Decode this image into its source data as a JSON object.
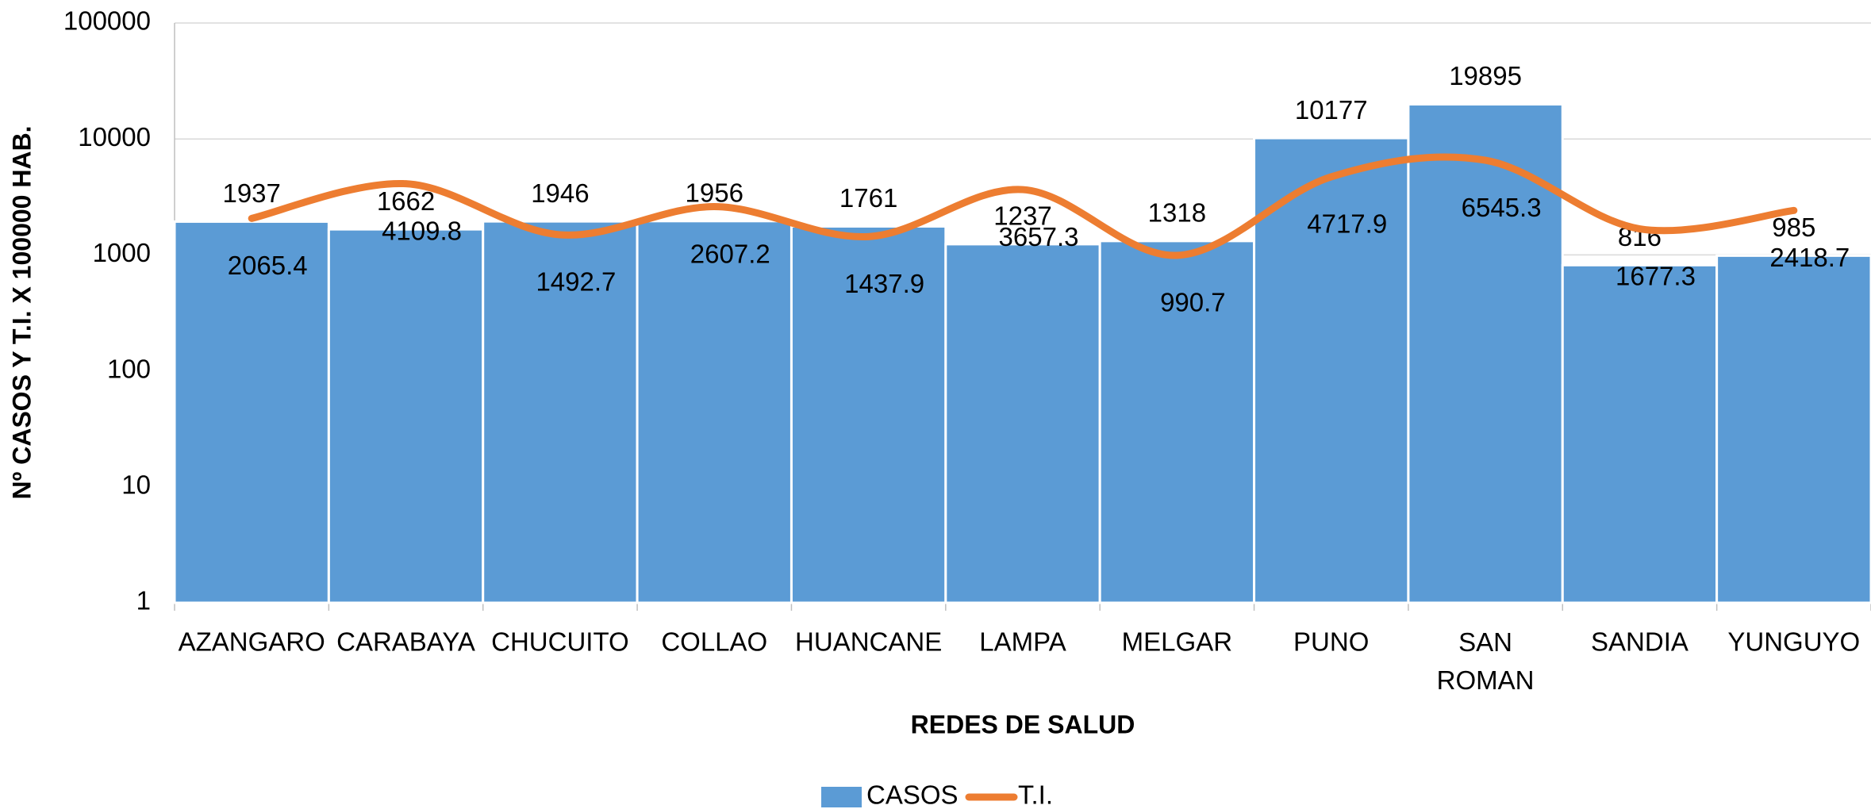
{
  "chart_data": {
    "type": "bar_line",
    "x_label": "REDES DE SALUD",
    "y_label": "Nº CASOS Y T.I. X 100000 HAB.",
    "categories": [
      "AZANGARO",
      "CARABAYA",
      "CHUCUITO",
      "COLLAO",
      "HUANCANE",
      "LAMPA",
      "MELGAR",
      "PUNO",
      "SAN ROMAN",
      "SANDIA",
      "YUNGUYO"
    ],
    "series": [
      {
        "name": "CASOS",
        "type": "bar",
        "color": "#5b9bd5",
        "values": [
          1937,
          1662,
          1946,
          1956,
          1761,
          1237,
          1318,
          10177,
          19895,
          816,
          985
        ]
      },
      {
        "name": "T.I.",
        "type": "line",
        "color": "#ed7d31",
        "values": [
          2065.4,
          4109.8,
          1492.7,
          2607.2,
          1437.9,
          3657.3,
          990.7,
          4717.9,
          6545.3,
          1677.3,
          2418.7
        ]
      }
    ],
    "ylim": [
      1,
      100000
    ],
    "yticks": [
      1,
      10,
      100,
      1000,
      10000,
      100000
    ],
    "log_scale": true,
    "grid": true,
    "legend": "bottom"
  }
}
